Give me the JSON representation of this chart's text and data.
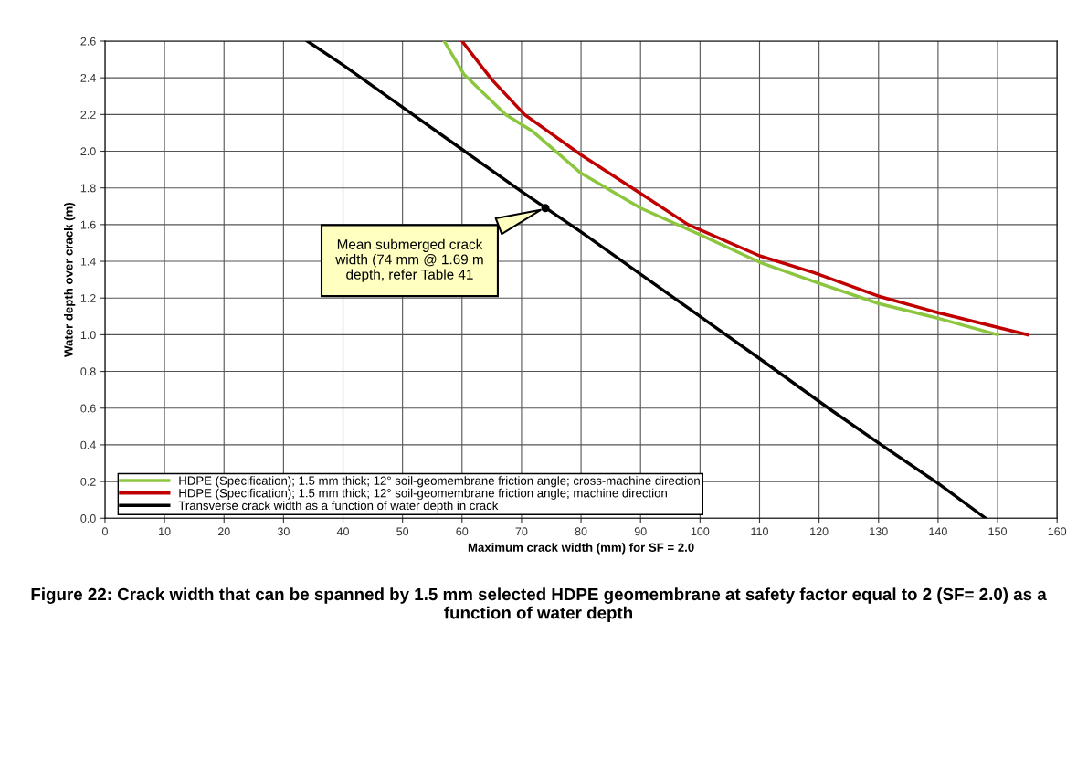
{
  "chart_data": {
    "type": "line",
    "title": "Figure 22: Crack width that can be spanned by 1.5 mm selected HDPE geomembrane at safety factor equal to 2 (SF= 2.0) as a function of water depth",
    "xlabel": "Maximum crack width (mm) for SF = 2.0",
    "ylabel": "Water depth over crack (m)",
    "series": [
      {
        "name": "HDPE (Specification); 1.5 mm thick; 12° soil-geomembrane friction angle; cross-machine direction",
        "color": "#8cc63f",
        "x": [
          57,
          60.3,
          67.3,
          71.8,
          80,
          90,
          100,
          110,
          120,
          130,
          140,
          150
        ],
        "values": [
          2.6,
          2.42,
          2.2,
          2.11,
          1.88,
          1.69,
          1.545,
          1.395,
          1.28,
          1.17,
          1.09,
          1.0
        ]
      },
      {
        "name": "HDPE (Specification); 1.5 mm thick; 12° soil-geomembrane friction angle; machine direction",
        "color": "#c00000",
        "x": [
          60,
          65,
          70.5,
          80,
          90,
          98,
          110,
          119,
          130,
          140,
          155
        ],
        "values": [
          2.6,
          2.39,
          2.2,
          1.98,
          1.77,
          1.6,
          1.43,
          1.34,
          1.21,
          1.12,
          1.0
        ]
      },
      {
        "name": "Transverse crack width as a function of water depth in crack",
        "color": "#000000",
        "x": [
          34,
          40,
          50,
          60,
          70,
          80,
          90,
          100,
          110,
          122,
          130,
          140,
          148
        ],
        "values": [
          2.6,
          2.47,
          2.24,
          2.01,
          1.78,
          1.56,
          1.33,
          1.1,
          0.87,
          0.59,
          0.41,
          0.19,
          0
        ]
      },
      {
        "type": "scatter",
        "color": "#000000",
        "x": [
          74
        ],
        "values": [
          1.69
        ]
      }
    ],
    "annotations": [
      "Mean submerged crack\nwidth (74 mm @ 1.69 m\ndepth, refer Table 41"
    ],
    "xlim": [
      0,
      160
    ],
    "ylim": [
      0,
      2.6
    ],
    "xticks": [
      0,
      10,
      20,
      30,
      40,
      50,
      60,
      70,
      80,
      90,
      100,
      110,
      120,
      130,
      140,
      150,
      160
    ],
    "yticks": [
      {
        "value": 0,
        "label": "0.0"
      },
      {
        "value": 0.2,
        "label": "0.2"
      },
      {
        "value": 0.4,
        "label": "0.4"
      },
      {
        "value": 0.6,
        "label": "0.6"
      },
      {
        "value": 0.8,
        "label": "0.8"
      },
      {
        "value": 1.0,
        "label": "1.0"
      },
      {
        "value": 1.2,
        "label": "1.2"
      },
      {
        "value": 1.4,
        "label": "1.4"
      },
      {
        "value": 1.6,
        "label": "1.6"
      },
      {
        "value": 1.8,
        "label": "1.8"
      },
      {
        "value": 2.0,
        "label": "2.0"
      },
      {
        "value": 2.2,
        "label": "2.2"
      },
      {
        "value": 2.4,
        "label": "2.4"
      },
      {
        "value": 2.6,
        "label": "2.6"
      }
    ],
    "grid": true,
    "legend": "bottom",
    "marker": "none",
    "line_style": "solid"
  }
}
